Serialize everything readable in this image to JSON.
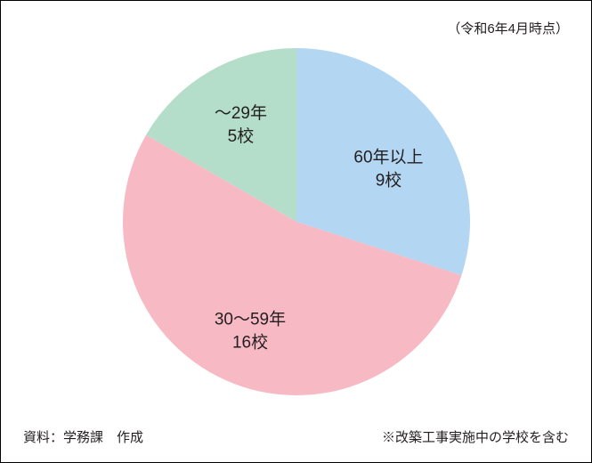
{
  "notes": {
    "top_right": "（令和6年4月時点）",
    "bottom_left": "資料：学務課　作成",
    "bottom_right": "※改築工事実施中の学校を含む"
  },
  "pie_chart": {
    "type": "pie",
    "radius": 195,
    "background_color": "#ffffff",
    "start_angle_deg": -90,
    "label_fontsize": 19,
    "label_color": "#231f20",
    "slices": [
      {
        "label_line1": "60年以上",
        "label_line2": "9校",
        "value": 9,
        "color": "#b3d6f2"
      },
      {
        "label_line1": "30～59年",
        "label_line2": "16校",
        "value": 16,
        "color": "#f7b9c4"
      },
      {
        "label_line1": "～29年",
        "label_line2": "5校",
        "value": 5,
        "color": "#b4dec9"
      }
    ]
  }
}
